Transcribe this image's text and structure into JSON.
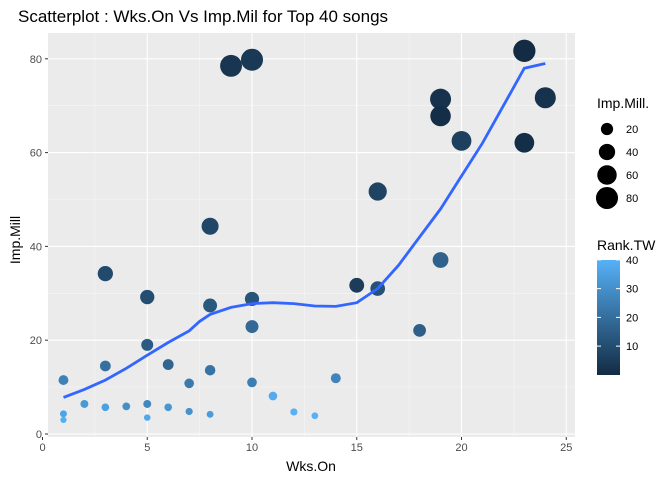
{
  "chart_data": {
    "type": "scatter",
    "title": "Scatterplot : Wks.On Vs Imp.Mil for Top 40 songs",
    "xlabel": "Wks.On",
    "ylabel": "Imp.Mill",
    "xlim": [
      0,
      25
    ],
    "ylim": [
      0,
      85
    ],
    "x_ticks": [
      "0",
      "5",
      "10",
      "15",
      "20",
      "25"
    ],
    "y_ticks": [
      "0",
      "20",
      "40",
      "60",
      "80"
    ],
    "grid": true,
    "legend_placement": "right",
    "size_legend": {
      "title": "Imp.Mill.",
      "values": [
        20,
        40,
        60,
        80
      ],
      "labels": [
        "20",
        "40",
        "60",
        "80"
      ]
    },
    "color_legend": {
      "title": "Rank.TW",
      "ticks": [
        10,
        20,
        30,
        40
      ],
      "labels": [
        "10",
        "20",
        "30",
        "40"
      ],
      "low_color": "#132B43",
      "high_color": "#56B1F7"
    },
    "smooth_color": "#3366FF",
    "smooth": [
      [
        1,
        7.8
      ],
      [
        2,
        9.5
      ],
      [
        3,
        11.5
      ],
      [
        4,
        14
      ],
      [
        5,
        16.8
      ],
      [
        6,
        19.5
      ],
      [
        7,
        22
      ],
      [
        7.5,
        24
      ],
      [
        8,
        25.5
      ],
      [
        9,
        27
      ],
      [
        10,
        27.8
      ],
      [
        11,
        28
      ],
      [
        12,
        27.8
      ],
      [
        13,
        27.3
      ],
      [
        14,
        27.2
      ],
      [
        15,
        28
      ],
      [
        16,
        31
      ],
      [
        17,
        36
      ],
      [
        18,
        42
      ],
      [
        19,
        48
      ],
      [
        20,
        55
      ],
      [
        21,
        62
      ],
      [
        22,
        70
      ],
      [
        23,
        78
      ],
      [
        24,
        79
      ]
    ],
    "points": [
      {
        "x": 1,
        "y": 11.5,
        "rank": 26
      },
      {
        "x": 1,
        "y": 4.3,
        "rank": 36
      },
      {
        "x": 1,
        "y": 3,
        "rank": 39
      },
      {
        "x": 2,
        "y": 6.4,
        "rank": 33
      },
      {
        "x": 3,
        "y": 34.2,
        "rank": 10
      },
      {
        "x": 3,
        "y": 14.5,
        "rank": 21
      },
      {
        "x": 3,
        "y": 5.7,
        "rank": 35
      },
      {
        "x": 4,
        "y": 5.9,
        "rank": 30
      },
      {
        "x": 5,
        "y": 29.2,
        "rank": 11
      },
      {
        "x": 5,
        "y": 19,
        "rank": 15
      },
      {
        "x": 5,
        "y": 6.4,
        "rank": 28
      },
      {
        "x": 5,
        "y": 3.5,
        "rank": 37
      },
      {
        "x": 6,
        "y": 14.8,
        "rank": 18
      },
      {
        "x": 6,
        "y": 5.7,
        "rank": 32
      },
      {
        "x": 7,
        "y": 10.8,
        "rank": 24
      },
      {
        "x": 7,
        "y": 4.8,
        "rank": 31
      },
      {
        "x": 8,
        "y": 44.3,
        "rank": 9
      },
      {
        "x": 8,
        "y": 27.4,
        "rank": 14
      },
      {
        "x": 8,
        "y": 13.6,
        "rank": 22
      },
      {
        "x": 8,
        "y": 4.2,
        "rank": 34
      },
      {
        "x": 9,
        "y": 78.5,
        "rank": 4
      },
      {
        "x": 10,
        "y": 79.8,
        "rank": 5
      },
      {
        "x": 10,
        "y": 28.8,
        "rank": 13
      },
      {
        "x": 10,
        "y": 22.9,
        "rank": 19
      },
      {
        "x": 10,
        "y": 11,
        "rank": 25
      },
      {
        "x": 11,
        "y": 8.1,
        "rank": 38
      },
      {
        "x": 12,
        "y": 4.7,
        "rank": 40
      },
      {
        "x": 13,
        "y": 3.9,
        "rank": 40
      },
      {
        "x": 14,
        "y": 11.9,
        "rank": 27
      },
      {
        "x": 15,
        "y": 31.7,
        "rank": 6
      },
      {
        "x": 16,
        "y": 51.7,
        "rank": 8
      },
      {
        "x": 16,
        "y": 31,
        "rank": 12
      },
      {
        "x": 18,
        "y": 22.1,
        "rank": 16
      },
      {
        "x": 19,
        "y": 71.4,
        "rank": 3
      },
      {
        "x": 19,
        "y": 67.8,
        "rank": 2
      },
      {
        "x": 19,
        "y": 37.1,
        "rank": 17
      },
      {
        "x": 20,
        "y": 62.5,
        "rank": 7
      },
      {
        "x": 23,
        "y": 81.7,
        "rank": 1
      },
      {
        "x": 23,
        "y": 62.1,
        "rank": 2
      },
      {
        "x": 24,
        "y": 71.7,
        "rank": 3
      }
    ]
  }
}
